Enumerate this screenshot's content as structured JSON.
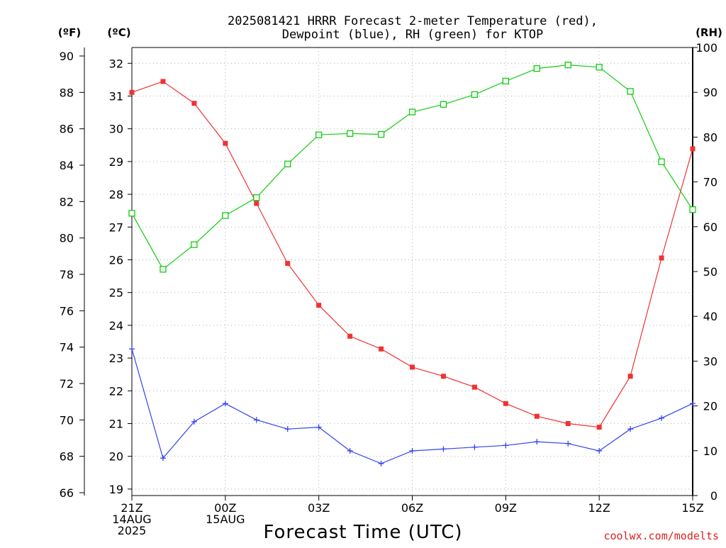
{
  "title_line1": "2025081421 HRRR Forecast 2-meter Temperature (red),",
  "title_line2": "Dewpoint (blue), RH (green) for KTOP",
  "unit_f": "(ºF)",
  "unit_c": "(ºC)",
  "unit_rh": "(RH)",
  "credit": "coolwx.com/modelts",
  "colors": {
    "temperature": "#ee3333",
    "dewpoint": "#3344ee",
    "rh": "#11cc11",
    "axis": "#000000"
  },
  "chart_data": {
    "type": "line",
    "title": "2025081421 HRRR Forecast 2-meter Temperature (red), Dewpoint (blue), RH (green) for KTOP",
    "xlabel": "Forecast Time (UTC)",
    "x_hours": [
      0,
      1,
      2,
      3,
      4,
      5,
      6,
      7,
      8,
      9,
      10,
      11,
      12,
      13,
      14,
      15,
      16,
      17,
      18
    ],
    "x_ticks": [
      {
        "hour": 0,
        "lines": [
          "21Z",
          "14AUG",
          "2025"
        ]
      },
      {
        "hour": 3,
        "lines": [
          "00Z",
          "15AUG"
        ]
      },
      {
        "hour": 6,
        "lines": [
          "03Z"
        ]
      },
      {
        "hour": 9,
        "lines": [
          "06Z"
        ]
      },
      {
        "hour": 12,
        "lines": [
          "09Z"
        ]
      },
      {
        "hour": 15,
        "lines": [
          "12Z"
        ]
      },
      {
        "hour": 18,
        "lines": [
          "15Z"
        ]
      }
    ],
    "y_left_f": {
      "label": "(ºF)",
      "range": [
        66,
        90
      ],
      "ticks": [
        66,
        68,
        70,
        72,
        74,
        76,
        78,
        80,
        82,
        84,
        86,
        88,
        90
      ]
    },
    "y_left_c": {
      "label": "(ºC)",
      "ticks": [
        19,
        20,
        21,
        22,
        23,
        24,
        25,
        26,
        27,
        28,
        29,
        30,
        31,
        32
      ]
    },
    "y_right_rh": {
      "label": "(RH)",
      "range": [
        0,
        100
      ],
      "ticks": [
        0,
        10,
        20,
        30,
        40,
        50,
        60,
        70,
        80,
        90,
        100
      ]
    },
    "grid": true,
    "series": [
      {
        "name": "Temperature",
        "color": "#ee3333",
        "axis": "F",
        "marker": "filled-square",
        "values": [
          88.0,
          88.6,
          87.4,
          85.2,
          81.9,
          78.6,
          76.3,
          74.6,
          73.9,
          72.9,
          72.4,
          71.8,
          70.9,
          70.2,
          69.8,
          69.6,
          72.4,
          78.9,
          84.9
        ]
      },
      {
        "name": "Dewpoint",
        "color": "#3344ee",
        "axis": "F",
        "marker": "plus",
        "values": [
          73.9,
          67.9,
          69.9,
          70.9,
          70.0,
          69.5,
          69.6,
          68.3,
          67.6,
          68.3,
          68.4,
          68.5,
          68.6,
          68.8,
          68.7,
          68.3,
          69.5,
          70.1,
          70.9
        ]
      },
      {
        "name": "RH",
        "color": "#11cc11",
        "axis": "RH",
        "marker": "open-square",
        "values": [
          63,
          50.5,
          56,
          62.5,
          66.5,
          74,
          80.5,
          80.8,
          80.6,
          85.6,
          87.3,
          89.5,
          92.5,
          95.3,
          96.1,
          95.6,
          90.2,
          74.5,
          63.8
        ]
      }
    ]
  }
}
